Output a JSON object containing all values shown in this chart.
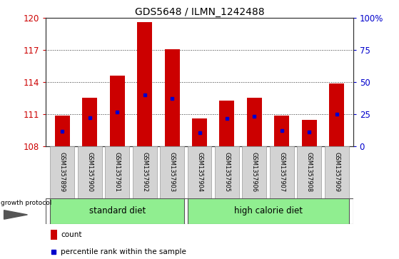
{
  "title": "GDS5648 / ILMN_1242488",
  "samples": [
    "GSM1357899",
    "GSM1357900",
    "GSM1357901",
    "GSM1357902",
    "GSM1357903",
    "GSM1357904",
    "GSM1357905",
    "GSM1357906",
    "GSM1357907",
    "GSM1357908",
    "GSM1357909"
  ],
  "bar_base": 108,
  "bar_tops": [
    110.9,
    112.55,
    114.65,
    119.65,
    117.1,
    110.6,
    112.3,
    112.55,
    110.85,
    110.45,
    113.85
  ],
  "blue_vals": [
    109.4,
    110.7,
    111.2,
    112.8,
    112.5,
    109.3,
    110.6,
    110.8,
    109.5,
    109.35,
    111.0
  ],
  "ylim_left": [
    108,
    120
  ],
  "yticks_left": [
    108,
    111,
    114,
    117,
    120
  ],
  "yticks_right_vals": [
    0,
    25,
    50,
    75,
    100
  ],
  "yticks_right_labels": [
    "0",
    "25",
    "50",
    "75",
    "100%"
  ],
  "bar_color": "#cc0000",
  "blue_color": "#0000cc",
  "left_tick_color": "#cc0000",
  "right_tick_color": "#0000cc",
  "group1_samples": [
    0,
    4
  ],
  "group2_samples": [
    5,
    10
  ],
  "group1_label": "standard diet",
  "group2_label": "high calorie diet",
  "group_color": "#90ee90",
  "tick_bg_color": "#d3d3d3",
  "legend_count_color": "#cc0000",
  "legend_pct_color": "#0000cc",
  "dotted_yticks": [
    111,
    114,
    117
  ],
  "bar_width": 0.55
}
